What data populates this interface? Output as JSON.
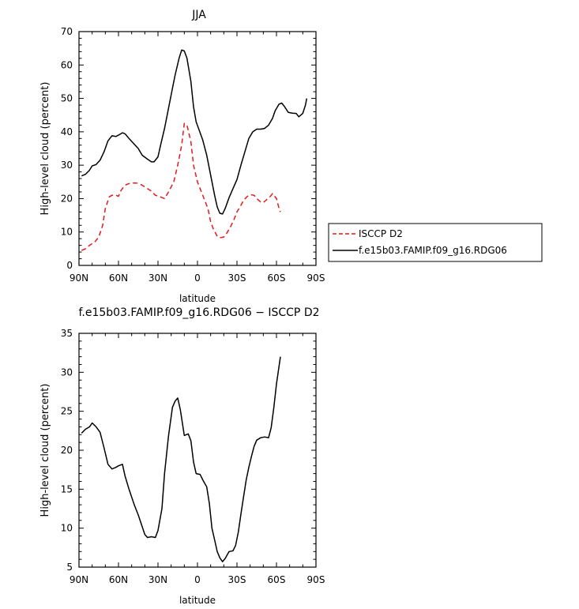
{
  "chart_data": [
    {
      "type": "line",
      "title": "JJA",
      "xlabel": "latitude",
      "ylabel": "High-level cloud (percent)",
      "xlim": [
        90,
        -90
      ],
      "ylim": [
        0,
        70
      ],
      "xticks": [
        90,
        60,
        30,
        0,
        -30,
        -60,
        -90
      ],
      "xtick_labels": [
        "90N",
        "60N",
        "30N",
        "0",
        "30S",
        "60S",
        "90S"
      ],
      "yticks": [
        0,
        10,
        20,
        30,
        40,
        50,
        60,
        70
      ],
      "ytick_labels": [
        "0",
        "10",
        "20",
        "30",
        "40",
        "50",
        "60",
        "70"
      ],
      "legend_position": "right",
      "series": [
        {
          "name": "ISCCP D2",
          "color": "#e41a1c",
          "dash": "dashed",
          "points": [
            [
              88,
              4.5
            ],
            [
              85,
              5
            ],
            [
              82,
              6
            ],
            [
              78,
              7
            ],
            [
              75,
              8.5
            ],
            [
              72,
              12
            ],
            [
              70,
              17
            ],
            [
              67,
              20.5
            ],
            [
              65,
              21
            ],
            [
              62,
              21
            ],
            [
              60,
              20.7
            ],
            [
              58,
              22.5
            ],
            [
              55,
              24
            ],
            [
              52,
              24.5
            ],
            [
              48,
              24.7
            ],
            [
              45,
              24.6
            ],
            [
              42,
              24
            ],
            [
              38,
              23
            ],
            [
              35,
              22.2
            ],
            [
              32,
              21
            ],
            [
              28,
              20.5
            ],
            [
              25,
              20
            ],
            [
              22,
              22
            ],
            [
              18,
              25
            ],
            [
              15,
              30
            ],
            [
              12,
              36
            ],
            [
              10,
              42.5
            ],
            [
              8,
              42
            ],
            [
              5,
              37
            ],
            [
              3,
              30
            ],
            [
              0,
              25
            ],
            [
              -3,
              22
            ],
            [
              -5,
              20
            ],
            [
              -8,
              17
            ],
            [
              -10,
              13
            ],
            [
              -12,
              11
            ],
            [
              -15,
              8.7
            ],
            [
              -17,
              8.3
            ],
            [
              -20,
              8.5
            ],
            [
              -22,
              9.5
            ],
            [
              -25,
              11.5
            ],
            [
              -28,
              14
            ],
            [
              -30,
              16
            ],
            [
              -33,
              18
            ],
            [
              -35,
              19.5
            ],
            [
              -38,
              20.7
            ],
            [
              -40,
              21.2
            ],
            [
              -43,
              21
            ],
            [
              -45,
              20
            ],
            [
              -48,
              19
            ],
            [
              -50,
              18.8
            ],
            [
              -52,
              19.5
            ],
            [
              -55,
              20.5
            ],
            [
              -57,
              21.5
            ],
            [
              -60,
              20
            ],
            [
              -62,
              17
            ],
            [
              -63,
              16
            ]
          ]
        },
        {
          "name": "f.e15b03.FAMIP.f09_g16.RDG06",
          "color": "#000000",
          "dash": "solid",
          "points": [
            [
              88,
              26.8
            ],
            [
              85,
              27.3
            ],
            [
              82,
              28.5
            ],
            [
              80,
              29.8
            ],
            [
              77,
              30.2
            ],
            [
              74,
              31.5
            ],
            [
              71,
              34
            ],
            [
              68,
              37.3
            ],
            [
              65,
              38.8
            ],
            [
              62,
              38.6
            ],
            [
              60,
              39
            ],
            [
              57,
              39.7
            ],
            [
              55,
              39.4
            ],
            [
              52,
              38
            ],
            [
              49,
              36.7
            ],
            [
              45,
              35
            ],
            [
              42,
              33
            ],
            [
              38,
              31.8
            ],
            [
              35,
              31
            ],
            [
              33,
              31
            ],
            [
              30,
              32.5
            ],
            [
              28,
              36
            ],
            [
              25,
              41
            ],
            [
              22,
              47
            ],
            [
              19,
              53
            ],
            [
              17,
              57
            ],
            [
              14,
              62
            ],
            [
              12,
              64.5
            ],
            [
              10,
              64.2
            ],
            [
              8,
              62
            ],
            [
              5,
              55
            ],
            [
              3,
              47.5
            ],
            [
              1,
              43
            ],
            [
              -1,
              40.8
            ],
            [
              -4,
              37.5
            ],
            [
              -7,
              33
            ],
            [
              -10,
              27
            ],
            [
              -13,
              21
            ],
            [
              -15,
              17.5
            ],
            [
              -17,
              15.6
            ],
            [
              -19,
              15.4
            ],
            [
              -21,
              17
            ],
            [
              -24,
              20.3
            ],
            [
              -27,
              23
            ],
            [
              -30,
              25.7
            ],
            [
              -33,
              30
            ],
            [
              -36,
              34
            ],
            [
              -39,
              38
            ],
            [
              -42,
              40
            ],
            [
              -45,
              40.8
            ],
            [
              -48,
              40.8
            ],
            [
              -51,
              41
            ],
            [
              -54,
              42
            ],
            [
              -57,
              44
            ],
            [
              -59,
              46.3
            ],
            [
              -62,
              48.3
            ],
            [
              -64,
              48.6
            ],
            [
              -66,
              47.6
            ],
            [
              -69,
              45.8
            ],
            [
              -72,
              45.6
            ],
            [
              -75,
              45.5
            ],
            [
              -77,
              44.5
            ],
            [
              -80,
              45.5
            ],
            [
              -82,
              48
            ],
            [
              -83,
              50
            ]
          ]
        }
      ]
    },
    {
      "type": "line",
      "title": "f.e15b03.FAMIP.f09_g16.RDG06 − ISCCP D2",
      "xlabel": "latitude",
      "ylabel": "High-level cloud (percent)",
      "xlim": [
        90,
        -90
      ],
      "ylim": [
        5,
        35
      ],
      "xticks": [
        90,
        60,
        30,
        0,
        -30,
        -60,
        -90
      ],
      "xtick_labels": [
        "90N",
        "60N",
        "30N",
        "0",
        "30S",
        "60S",
        "90S"
      ],
      "yticks": [
        5,
        10,
        15,
        20,
        25,
        30,
        35
      ],
      "ytick_labels": [
        "5",
        "10",
        "15",
        "20",
        "25",
        "30",
        "35"
      ],
      "series": [
        {
          "color": "#000000",
          "dash": "solid",
          "points": [
            [
              88,
              22.2
            ],
            [
              85,
              22.7
            ],
            [
              82,
              23
            ],
            [
              80,
              23.5
            ],
            [
              77,
              23
            ],
            [
              74,
              22.3
            ],
            [
              71,
              20.3
            ],
            [
              68,
              18.2
            ],
            [
              65,
              17.6
            ],
            [
              62,
              17.8
            ],
            [
              60,
              18
            ],
            [
              57,
              18.2
            ],
            [
              55,
              16.7
            ],
            [
              52,
              15
            ],
            [
              48,
              13
            ],
            [
              45,
              11.7
            ],
            [
              42,
              10.2
            ],
            [
              40,
              9.2
            ],
            [
              38,
              8.8
            ],
            [
              35,
              8.9
            ],
            [
              32,
              8.8
            ],
            [
              30,
              9.7
            ],
            [
              27,
              12.5
            ],
            [
              25,
              17
            ],
            [
              22,
              21.8
            ],
            [
              19,
              25.5
            ],
            [
              17,
              26.3
            ],
            [
              15,
              26.7
            ],
            [
              13,
              25.2
            ],
            [
              10,
              21.9
            ],
            [
              7,
              22.1
            ],
            [
              5,
              21.2
            ],
            [
              3,
              18.5
            ],
            [
              1,
              17
            ],
            [
              -2,
              16.9
            ],
            [
              -4,
              16.2
            ],
            [
              -7,
              15.3
            ],
            [
              -9,
              13.2
            ],
            [
              -11,
              10
            ],
            [
              -13,
              8.5
            ],
            [
              -15,
              7
            ],
            [
              -17,
              6.2
            ],
            [
              -19,
              5.7
            ],
            [
              -21,
              6.1
            ],
            [
              -24,
              7
            ],
            [
              -27,
              7.1
            ],
            [
              -29,
              7.8
            ],
            [
              -31,
              9.5
            ],
            [
              -33,
              11.8
            ],
            [
              -35,
              14
            ],
            [
              -37,
              16.2
            ],
            [
              -39,
              17.8
            ],
            [
              -41,
              19.2
            ],
            [
              -43,
              20.5
            ],
            [
              -45,
              21.3
            ],
            [
              -48,
              21.6
            ],
            [
              -51,
              21.7
            ],
            [
              -54,
              21.6
            ],
            [
              -56,
              22.9
            ],
            [
              -58,
              25.5
            ],
            [
              -60,
              28.5
            ],
            [
              -63,
              32
            ]
          ]
        }
      ]
    }
  ]
}
